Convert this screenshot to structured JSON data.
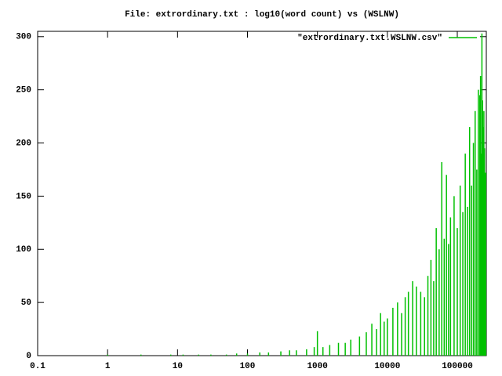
{
  "chart_data": {
    "type": "impulses",
    "title": "File: extrordinary.txt : log10(word count) vs (WSLNW)",
    "x_scale": "log",
    "xlim": [
      0.1,
      260000
    ],
    "xticks": [
      0.1,
      1,
      10,
      100,
      1000,
      10000,
      100000
    ],
    "ylim": [
      0,
      305
    ],
    "yticks": [
      0,
      50,
      100,
      150,
      200,
      250,
      300
    ],
    "legend": "top-right",
    "series": [
      {
        "name": "\"extrordinary.txt.WSLNW.csv\"",
        "color": "#00c000",
        "x": [
          1,
          2,
          3,
          5,
          8,
          12,
          20,
          30,
          50,
          70,
          100,
          150,
          200,
          300,
          400,
          500,
          700,
          900,
          1000,
          1200,
          1500,
          2000,
          2500,
          3000,
          4000,
          5000,
          6000,
          7000,
          8000,
          9000,
          10000,
          12000,
          14000,
          16000,
          18000,
          20000,
          23000,
          26000,
          30000,
          34000,
          38000,
          42000,
          46000,
          50000,
          55000,
          60000,
          65000,
          70000,
          75000,
          80000,
          90000,
          100000,
          110000,
          120000,
          130000,
          140000,
          150000,
          160000,
          170000,
          180000,
          190000,
          200000,
          210000,
          215000,
          220000,
          225000,
          230000,
          235000,
          240000,
          245000,
          250000,
          255000
        ],
        "values": [
          1,
          0,
          1,
          0,
          1,
          1,
          1,
          1,
          1,
          2,
          2,
          3,
          3,
          4,
          5,
          5,
          6,
          8,
          23,
          8,
          10,
          12,
          12,
          15,
          18,
          22,
          30,
          25,
          40,
          32,
          35,
          45,
          50,
          40,
          55,
          60,
          70,
          65,
          60,
          55,
          75,
          90,
          70,
          120,
          100,
          182,
          110,
          170,
          105,
          130,
          150,
          120,
          160,
          135,
          190,
          140,
          215,
          160,
          200,
          230,
          175,
          250,
          245,
          263,
          190,
          303,
          240,
          215,
          230,
          195,
          170,
          172
        ]
      }
    ]
  }
}
